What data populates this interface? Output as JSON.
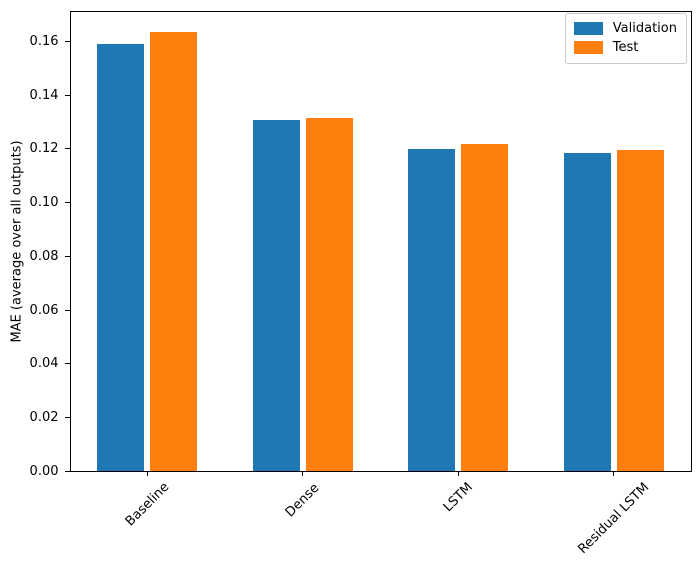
{
  "chart_data": {
    "type": "bar",
    "ylabel": "MAE (average over all outputs)",
    "xlabel": "",
    "categories": [
      "Baseline",
      "Dense",
      "LSTM",
      "Residual LSTM"
    ],
    "series": [
      {
        "name": "Validation",
        "color": "#1f77b4",
        "values": [
          0.1585,
          0.1305,
          0.1197,
          0.118
        ]
      },
      {
        "name": "Test",
        "color": "#ff7f0e",
        "values": [
          0.1632,
          0.131,
          0.1213,
          0.1192
        ]
      }
    ],
    "ylim": [
      0,
      0.1713
    ],
    "xlim": [
      -0.5,
      3.5
    ],
    "yticks": [
      0,
      0.02,
      0.04,
      0.06,
      0.08,
      0.1,
      0.12,
      0.14,
      0.16
    ],
    "ytick_format_decimals": 2,
    "xtick_rotation_deg": 45,
    "bar_width": 0.3,
    "bar_offsets": [
      -0.17,
      0.17
    ],
    "grid": false,
    "legend_position": "upper-right",
    "background": "#ffffff",
    "spine_color": "#000000",
    "text_color": "#000000"
  }
}
